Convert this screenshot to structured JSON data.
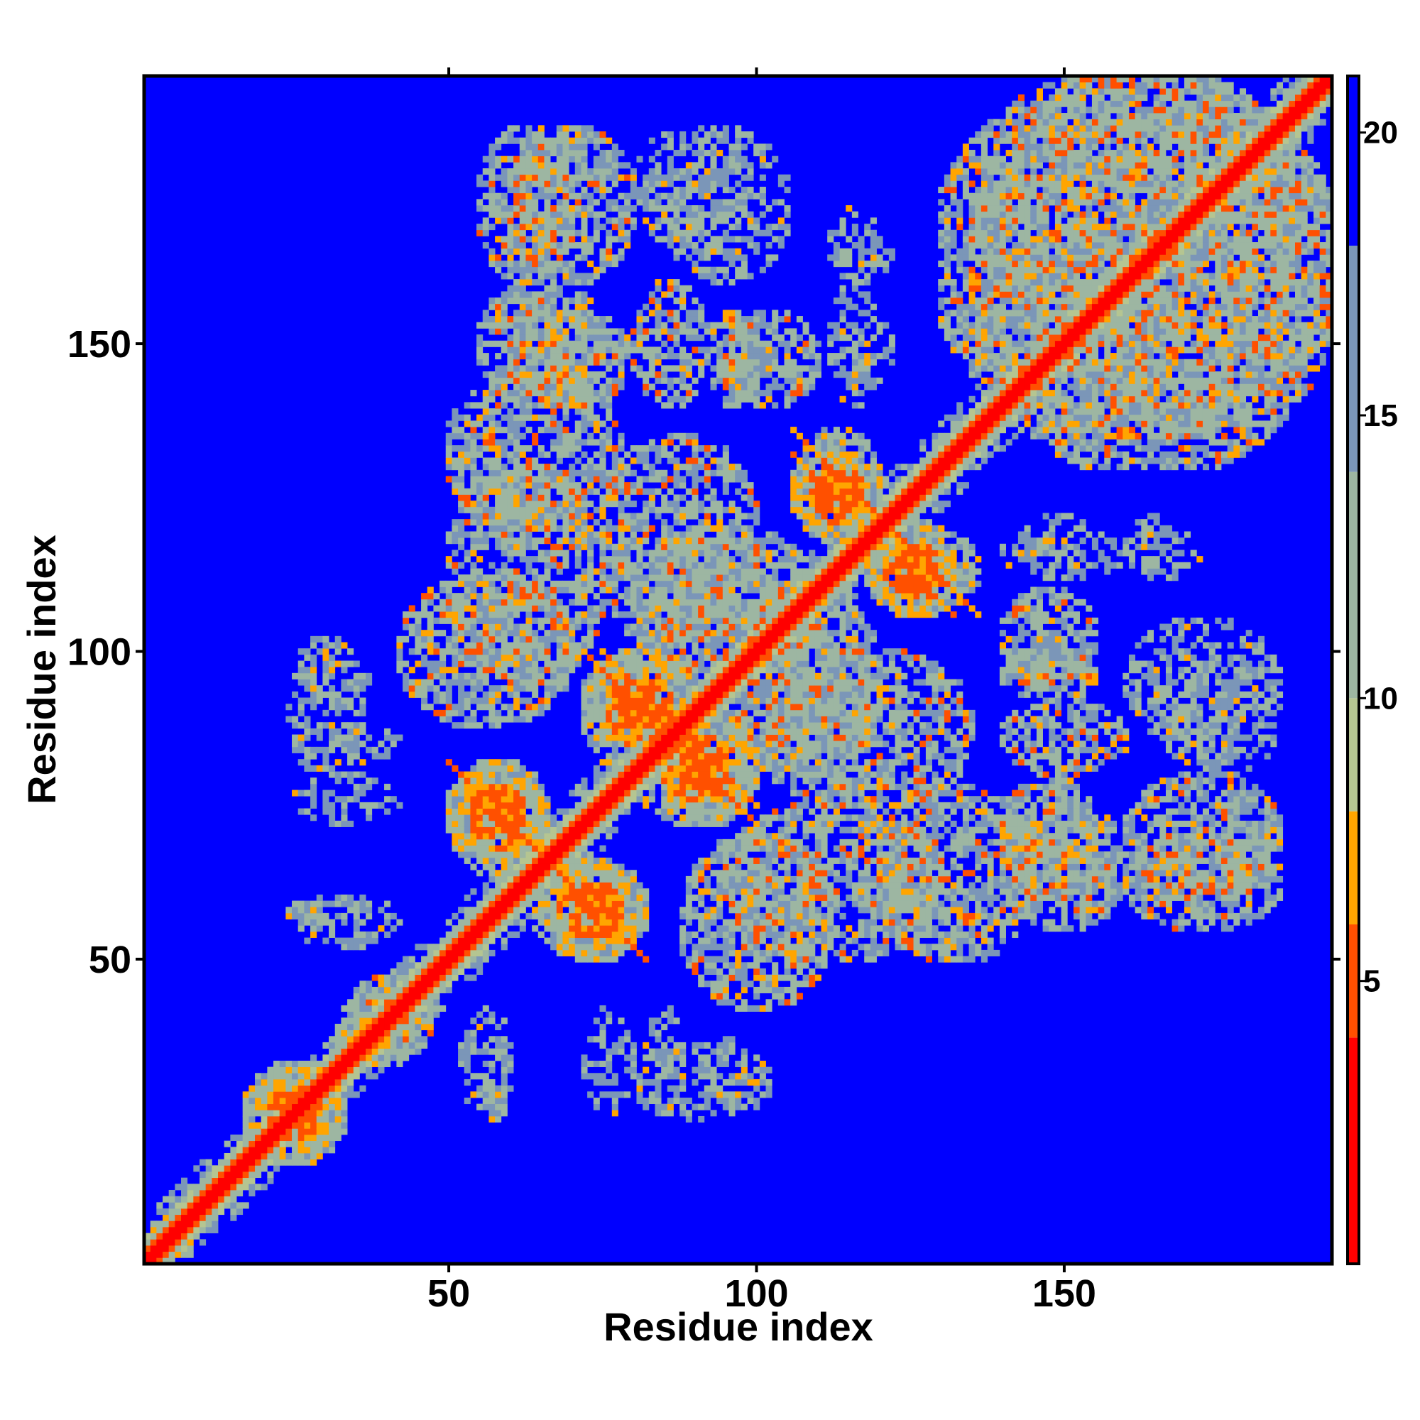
{
  "chart_data": {
    "type": "heatmap",
    "title": "",
    "xlabel": "Residue index",
    "ylabel": "Residue index",
    "xlim": [
      1,
      193
    ],
    "ylim": [
      1,
      193
    ],
    "x_ticks": [
      50,
      100,
      150
    ],
    "y_ticks": [
      50,
      100,
      150
    ],
    "grid": false,
    "legend": "right (colorbar)",
    "colorbar": {
      "min": 0,
      "max": 21,
      "ticks": [
        5,
        10,
        15,
        20
      ],
      "colors": [
        {
          "upto": 4,
          "color": "#ff0000"
        },
        {
          "upto": 6,
          "color": "#ff5000"
        },
        {
          "upto": 8,
          "color": "#ffa500"
        },
        {
          "upto": 10,
          "color": "#b5c591"
        },
        {
          "upto": 14,
          "color": "#9db6a2"
        },
        {
          "upto": 18,
          "color": "#7b96b8"
        },
        {
          "upto": 21,
          "color": "#0000ff"
        }
      ]
    },
    "values": {
      "description_of_content": "",
      "diagonal_band": {
        "dist_min": 0,
        "dist_max": 6
      },
      "contact_regions": [
        {
          "x": [
            1,
            8
          ],
          "y": [
            1,
            8
          ],
          "level": "near"
        },
        {
          "x": [
            17,
            33
          ],
          "y": [
            17,
            33
          ],
          "level": "near"
        },
        {
          "x": [
            33,
            47
          ],
          "y": [
            33,
            47
          ],
          "level": "mid"
        },
        {
          "x": [
            50,
            66
          ],
          "y": [
            64,
            82
          ],
          "level": "near"
        },
        {
          "x": [
            66,
            82
          ],
          "y": [
            50,
            66
          ],
          "level": "near"
        },
        {
          "x": [
            72,
            90
          ],
          "y": [
            80,
            100
          ],
          "level": "near"
        },
        {
          "x": [
            85,
            100
          ],
          "y": [
            72,
            90
          ],
          "level": "near"
        },
        {
          "x": [
            106,
            120
          ],
          "y": [
            118,
            136
          ],
          "level": "near"
        },
        {
          "x": [
            118,
            132
          ],
          "y": [
            106,
            120
          ],
          "level": "near"
        },
        {
          "x": [
            50,
            78
          ],
          "y": [
            120,
            145
          ],
          "level": "mid"
        },
        {
          "x": [
            42,
            70
          ],
          "y": [
            88,
            112
          ],
          "level": "mid"
        },
        {
          "x": [
            80,
            110
          ],
          "y": [
            95,
            120
          ],
          "level": "mid"
        },
        {
          "x": [
            100,
            135
          ],
          "y": [
            75,
            100
          ],
          "level": "mid"
        },
        {
          "x": [
            95,
            130
          ],
          "y": [
            50,
            75
          ],
          "level": "mid"
        },
        {
          "x": [
            55,
            70
          ],
          "y": [
            160,
            185
          ],
          "level": "mid"
        },
        {
          "x": [
            55,
            75
          ],
          "y": [
            140,
            160
          ],
          "level": "mid"
        },
        {
          "x": [
            80,
            92
          ],
          "y": [
            140,
            160
          ],
          "level": "mid"
        },
        {
          "x": [
            92,
            100
          ],
          "y": [
            140,
            155
          ],
          "level": "mid"
        },
        {
          "x": [
            80,
            100
          ],
          "y": [
            165,
            185
          ],
          "level": "sparse"
        },
        {
          "x": [
            112,
            120
          ],
          "y": [
            140,
            160
          ],
          "level": "sparse"
        },
        {
          "x": [
            112,
            120
          ],
          "y": [
            160,
            172
          ],
          "level": "sparse"
        },
        {
          "x": [
            135,
            193
          ],
          "y": [
            130,
            193
          ],
          "level": "mid"
        },
        {
          "x": [
            140,
            155
          ],
          "y": [
            95,
            110
          ],
          "level": "mid"
        },
        {
          "x": [
            140,
            155
          ],
          "y": [
            60,
            80
          ],
          "level": "mid"
        },
        {
          "x": [
            160,
            185
          ],
          "y": [
            60,
            80
          ],
          "level": "mid"
        },
        {
          "x": [
            160,
            185
          ],
          "y": [
            85,
            105
          ],
          "level": "sparse"
        },
        {
          "x": [
            142,
            155
          ],
          "y": [
            112,
            122
          ],
          "level": "sparse"
        },
        {
          "x": [
            160,
            168
          ],
          "y": [
            112,
            122
          ],
          "level": "sparse"
        },
        {
          "x": [
            24,
            36
          ],
          "y": [
            80,
            102
          ],
          "level": "sparse"
        },
        {
          "x": [
            24,
            36
          ],
          "y": [
            55,
            60
          ],
          "level": "sparse"
        },
        {
          "x": [
            52,
            60
          ],
          "y": [
            25,
            42
          ],
          "level": "sparse"
        },
        {
          "x": [
            72,
            80
          ],
          "y": [
            25,
            42
          ],
          "level": "sparse"
        },
        {
          "x": [
            82,
            88
          ],
          "y": [
            25,
            42
          ],
          "level": "sparse"
        },
        {
          "x": [
            92,
            98
          ],
          "y": [
            25,
            38
          ],
          "level": "sparse"
        }
      ]
    }
  }
}
